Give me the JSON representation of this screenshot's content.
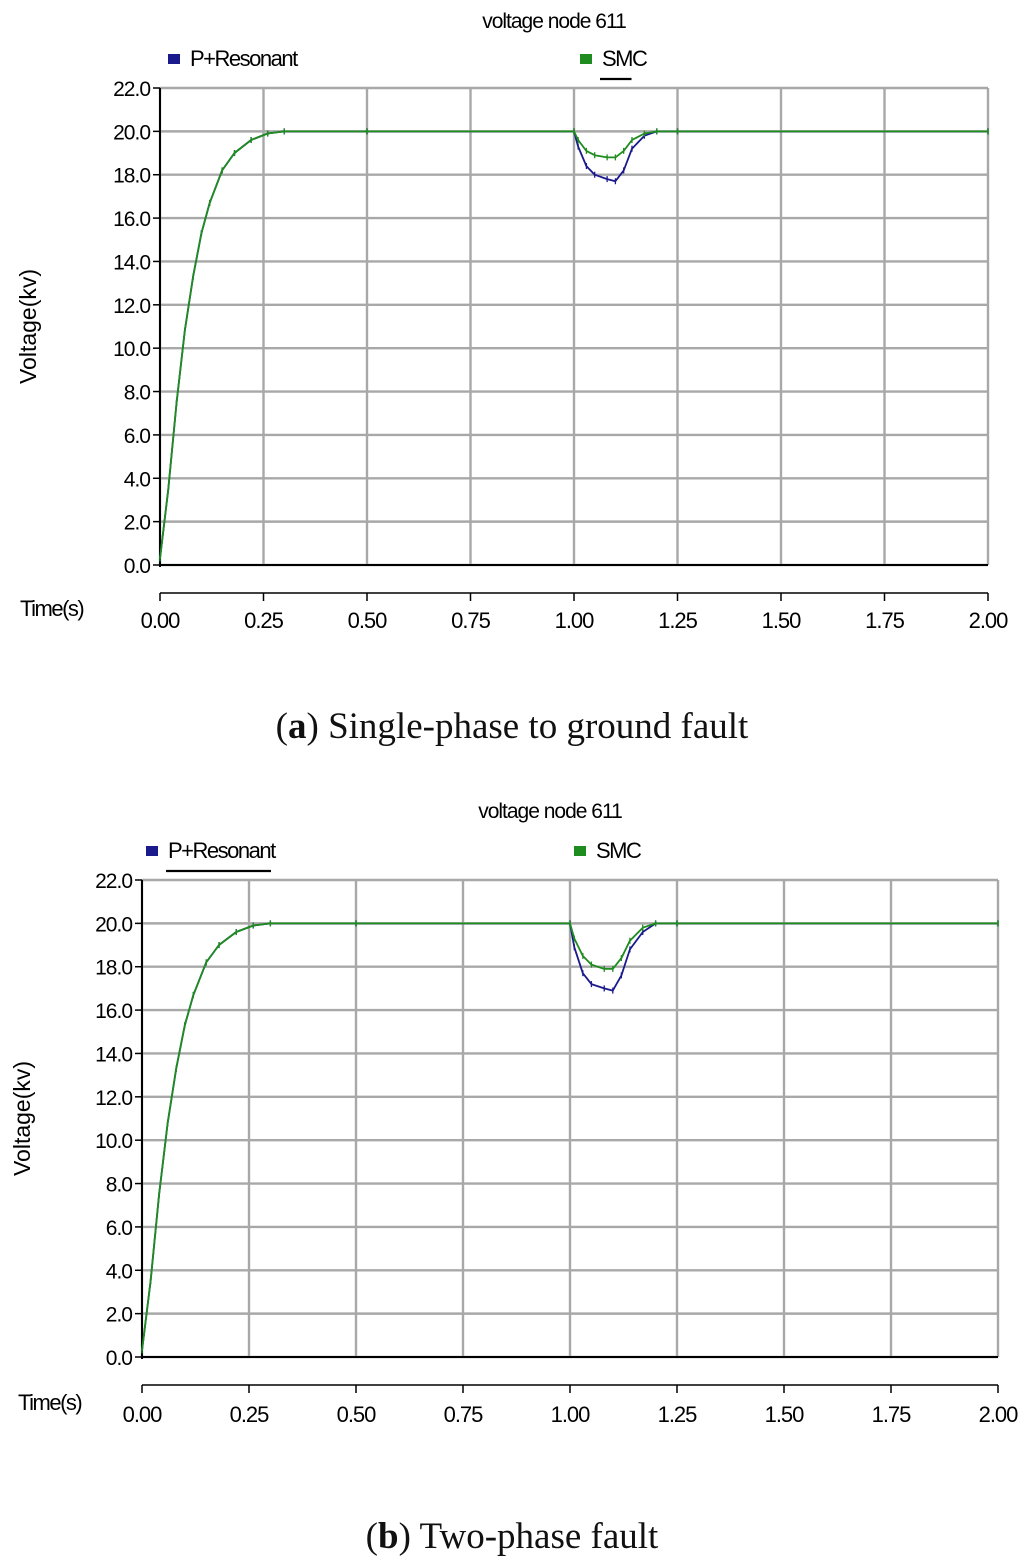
{
  "chart_data": [
    {
      "panel": "a",
      "type": "line",
      "title": "voltage node 611",
      "xlabel": "Time(s)",
      "ylabel": "Voltage(kv)",
      "xlim": [
        0,
        2
      ],
      "ylim": [
        0,
        22
      ],
      "xticks": [
        "0.00",
        "0.25",
        "0.50",
        "0.75",
        "1.00",
        "1.25",
        "1.50",
        "1.75",
        "2.00"
      ],
      "yticks": [
        "0.0",
        "2.0",
        "4.0",
        "6.0",
        "8.0",
        "10.0",
        "12.0",
        "14.0",
        "16.0",
        "18.0",
        "20.0",
        "22.0"
      ],
      "grid": true,
      "legend": "top",
      "series": [
        {
          "name": "P+Resonant",
          "color": "#1a1a8c",
          "x": [
            0.0,
            0.02,
            0.04,
            0.06,
            0.08,
            0.1,
            0.12,
            0.15,
            0.18,
            0.22,
            0.26,
            0.3,
            0.5,
            1.0,
            1.01,
            1.03,
            1.05,
            1.08,
            1.1,
            1.12,
            1.14,
            1.17,
            1.2,
            1.25,
            2.0
          ],
          "values": [
            0.3,
            3.5,
            7.5,
            10.8,
            13.3,
            15.3,
            16.7,
            18.2,
            19.0,
            19.6,
            19.9,
            20.0,
            20.0,
            20.0,
            19.3,
            18.4,
            18.0,
            17.8,
            17.7,
            18.2,
            19.2,
            19.8,
            20.0,
            20.0,
            20.0
          ]
        },
        {
          "name": "SMC",
          "color": "#1e8c1e",
          "x": [
            0.0,
            0.02,
            0.04,
            0.06,
            0.08,
            0.1,
            0.12,
            0.15,
            0.18,
            0.22,
            0.26,
            0.3,
            0.5,
            1.0,
            1.01,
            1.03,
            1.05,
            1.08,
            1.1,
            1.12,
            1.14,
            1.17,
            1.2,
            1.25,
            2.0
          ],
          "values": [
            0.3,
            3.5,
            7.5,
            10.8,
            13.3,
            15.3,
            16.7,
            18.2,
            19.0,
            19.6,
            19.9,
            20.0,
            20.0,
            20.0,
            19.6,
            19.1,
            18.9,
            18.8,
            18.8,
            19.1,
            19.6,
            19.9,
            20.0,
            20.0,
            20.0
          ]
        }
      ],
      "caption_label": "a",
      "caption_text": " Single-phase to ground fault"
    },
    {
      "panel": "b",
      "type": "line",
      "title": "voltage node 611",
      "xlabel": "Time(s)",
      "ylabel": "Voltage(kv)",
      "xlim": [
        0,
        2
      ],
      "ylim": [
        0,
        22
      ],
      "xticks": [
        "0.00",
        "0.25",
        "0.50",
        "0.75",
        "1.00",
        "1.25",
        "1.50",
        "1.75",
        "2.00"
      ],
      "yticks": [
        "0.0",
        "2.0",
        "4.0",
        "6.0",
        "8.0",
        "10.0",
        "12.0",
        "14.0",
        "16.0",
        "18.0",
        "20.0",
        "22.0"
      ],
      "grid": true,
      "legend": "top",
      "series": [
        {
          "name": "P+Resonant",
          "color": "#1a1a8c",
          "x": [
            0.0,
            0.02,
            0.04,
            0.06,
            0.08,
            0.1,
            0.12,
            0.15,
            0.18,
            0.22,
            0.26,
            0.3,
            0.5,
            1.0,
            1.01,
            1.03,
            1.05,
            1.08,
            1.1,
            1.12,
            1.14,
            1.17,
            1.2,
            1.25,
            2.0
          ],
          "values": [
            0.3,
            3.5,
            7.5,
            10.8,
            13.3,
            15.3,
            16.7,
            18.2,
            19.0,
            19.6,
            19.9,
            20.0,
            20.0,
            20.0,
            18.9,
            17.7,
            17.2,
            17.0,
            16.9,
            17.6,
            18.8,
            19.6,
            20.0,
            20.0,
            20.0
          ]
        },
        {
          "name": "SMC",
          "color": "#1e8c1e",
          "x": [
            0.0,
            0.02,
            0.04,
            0.06,
            0.08,
            0.1,
            0.12,
            0.15,
            0.18,
            0.22,
            0.26,
            0.3,
            0.5,
            1.0,
            1.01,
            1.03,
            1.05,
            1.08,
            1.1,
            1.12,
            1.14,
            1.17,
            1.2,
            1.25,
            2.0
          ],
          "values": [
            0.3,
            3.5,
            7.5,
            10.8,
            13.3,
            15.3,
            16.7,
            18.2,
            19.0,
            19.6,
            19.9,
            20.0,
            20.0,
            20.0,
            19.3,
            18.5,
            18.1,
            17.9,
            17.9,
            18.4,
            19.2,
            19.8,
            20.0,
            20.0,
            20.0
          ]
        }
      ],
      "caption_label": "b",
      "caption_text": " Two-phase fault"
    }
  ]
}
